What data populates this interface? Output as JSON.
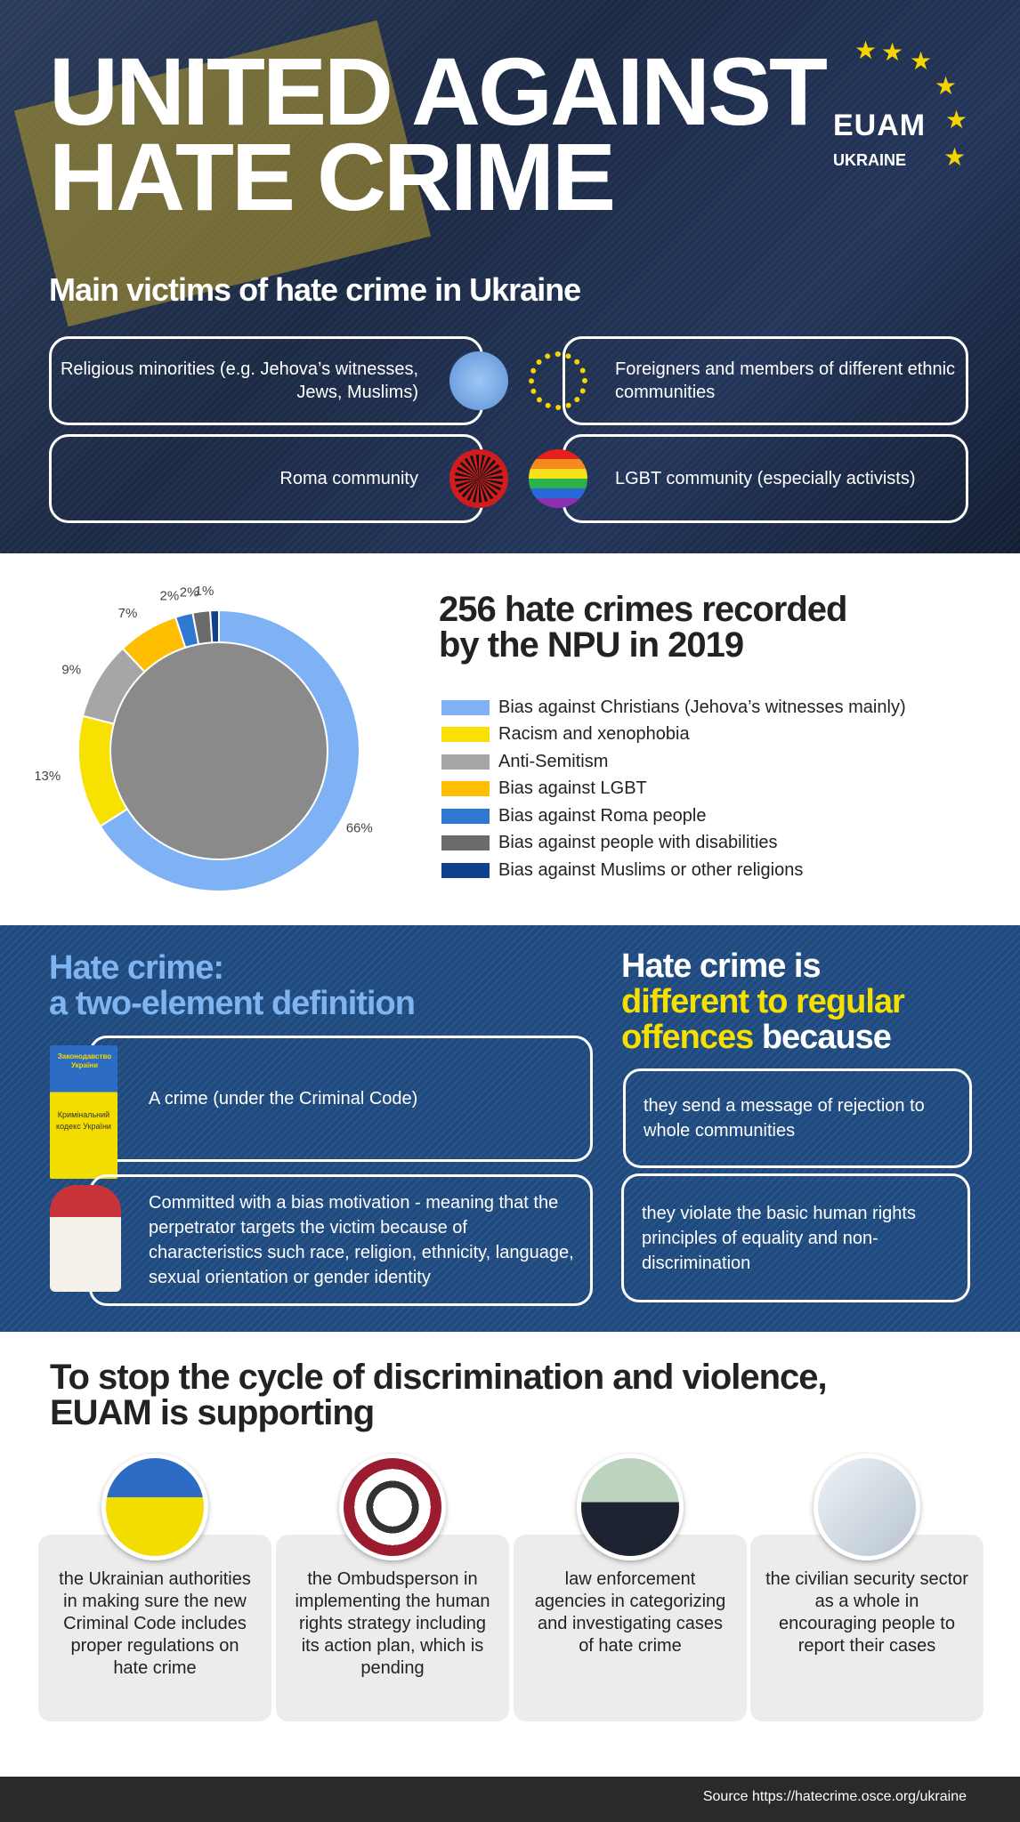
{
  "header": {
    "title_line1": "UNITED AGAINST",
    "title_line2": "HATE CRIME",
    "logo": "EUAM",
    "logo_sub": "UKRAINE",
    "subtitle": "Main victims of hate crime in Ukraine"
  },
  "victims": [
    {
      "label": "Religious minorities (e.g. Jehova’s witnesses, Jews, Muslims)",
      "icon": "dove-icon"
    },
    {
      "label": "Foreigners and members of different ethnic communities",
      "icon": "people-circle-icon"
    },
    {
      "label": "Roma community",
      "icon": "roma-wheel-icon"
    },
    {
      "label": "LGBT community (especially activists)",
      "icon": "rainbow-icon"
    }
  ],
  "chart_data": {
    "type": "pie",
    "donut": true,
    "title": "256 hate crimes recorded by the NPU in 2019",
    "title_line1": "256 hate crimes recorded",
    "title_line2": "by the NPU in 2019",
    "legend_position": "right",
    "categories": [
      "Bias against Christians (Jehova’s witnesses mainly)",
      "Racism and xenophobia",
      "Anti-Semitism",
      "Bias against LGBT",
      "Bias against Roma people",
      "Bias against people with disabilities",
      "Bias against Muslims or other religions"
    ],
    "values": [
      66,
      13,
      9,
      7,
      2,
      2,
      1
    ],
    "labels": [
      "66%",
      "13%",
      "9%",
      "7%",
      "2%",
      "2%",
      "1%"
    ],
    "colors": [
      "#7fb2f5",
      "#f8e000",
      "#a6a6a6",
      "#ffbf00",
      "#2f78d0",
      "#6b6b6b",
      "#113f8c"
    ]
  },
  "definition": {
    "heading_line1": "Hate crime:",
    "heading_line2": "a two-element definition",
    "items": [
      "A crime (under the Criminal Code)",
      "Committed with a bias motivation - meaning that the perpetrator targets the victim because of characteristics such race, religion, ethnicity, language, sexual orientation or gender identity"
    ],
    "book_text": "Кримінальний кодекс України",
    "book_top": "Законодавство України"
  },
  "different": {
    "line1": "Hate crime is",
    "line2": "different to regular",
    "line3a": "offences",
    "line3b": " because",
    "items": [
      "they send a message of rejection to whole communities",
      "they violate the basic human rights principles of equality and non-discrimination"
    ]
  },
  "support": {
    "heading_line1": "To stop the cycle of discrimination and violence,",
    "heading_line2": "EUAM is supporting",
    "cards": [
      "the Ukrainian authorities in making sure the new Criminal Code includes proper regulations on hate crime",
      "the Ombudsperson in implementing the human rights strategy including its action plan, which is pending",
      "law enforcement agencies in categorizing and investigating cases of hate crime",
      "the civilian security sector as a whole in encouraging people to report their cases"
    ]
  },
  "footer": {
    "source": "Source https://hatecrime.osce.org/ukraine"
  }
}
